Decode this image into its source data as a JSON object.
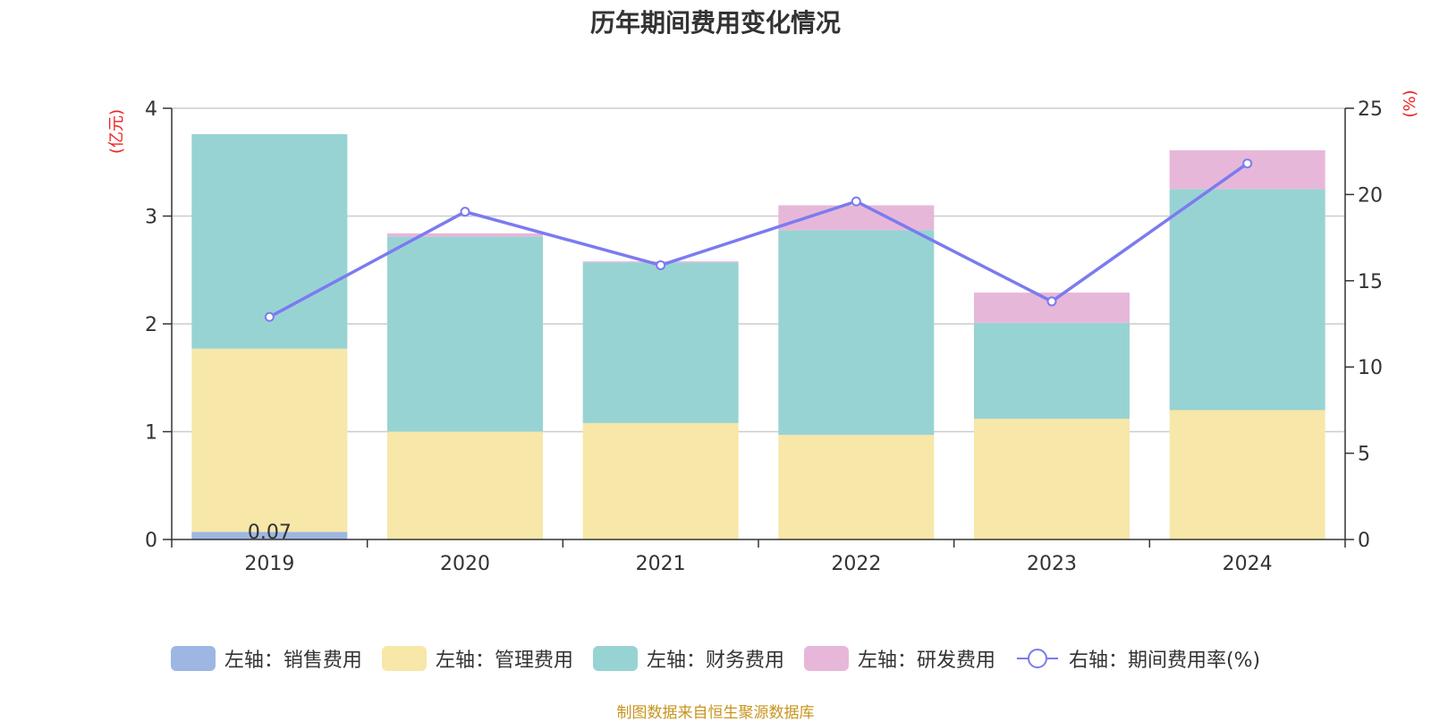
{
  "chart_data": {
    "type": "bar",
    "title": "历年期间费用变化情况",
    "categories": [
      "2019",
      "2020",
      "2021",
      "2022",
      "2023",
      "2024"
    ],
    "y_left": {
      "unit_label": "(亿元)",
      "ylim": [
        0,
        4
      ],
      "ticks": [
        "0",
        "1",
        "2",
        "3",
        "4"
      ]
    },
    "y_right": {
      "unit_label": "(%)",
      "ylim": [
        0,
        25
      ],
      "ticks": [
        "0",
        "5",
        "10",
        "15",
        "20",
        "25"
      ]
    },
    "stacked": true,
    "series": [
      {
        "name": "左轴：销售费用",
        "axis": "left",
        "type": "bar",
        "color": "#9db7e2",
        "values": [
          0.07,
          0,
          0,
          0,
          0,
          0
        ]
      },
      {
        "name": "左轴：管理费用",
        "axis": "left",
        "type": "bar",
        "color": "#f7e7a8",
        "values": [
          1.7,
          1.0,
          1.08,
          0.97,
          1.12,
          1.2
        ]
      },
      {
        "name": "左轴：财务费用",
        "axis": "left",
        "type": "bar",
        "color": "#98d3d4",
        "values": [
          1.99,
          1.81,
          1.49,
          1.9,
          0.89,
          2.05
        ]
      },
      {
        "name": "左轴：研发费用",
        "axis": "left",
        "type": "bar",
        "color": "#e7b7d9",
        "values": [
          0,
          0.03,
          0.01,
          0.23,
          0.28,
          0.36
        ]
      },
      {
        "name": "右轴：期间费用率(%)",
        "axis": "right",
        "type": "line",
        "color": "#7b7bef",
        "values": [
          12.9,
          19.0,
          15.9,
          19.6,
          13.8,
          21.8
        ]
      }
    ],
    "data_labels": [
      {
        "category": "2019",
        "series": "左轴：销售费用",
        "text": "0.07"
      }
    ],
    "grid": true,
    "legend_position": "bottom"
  },
  "footer": {
    "source": "制图数据来自恒生聚源数据库"
  }
}
